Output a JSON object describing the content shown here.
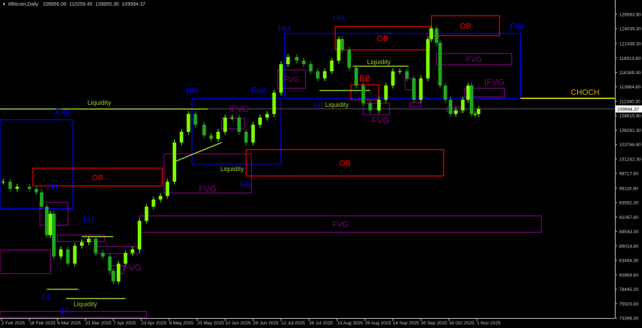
{
  "header": {
    "symbol": "#Bitcoin,Daily",
    "open": "109856.08",
    "high": "110259.45",
    "low": "109855.30",
    "close": "109994.37",
    "menu_icon": "triangle-down-icon"
  },
  "colors": {
    "background": "#000000",
    "bull": "#7CFC00",
    "bear": "#1fa81f",
    "structure": "#0000ff",
    "order_block": "#ff0000",
    "fvg": "#800080",
    "liquidity": "#9acd32",
    "choch": "#ffff00",
    "choch_text": "#d4b000",
    "price_line": "#5a5a5a",
    "axis": "#c0c0c0"
  },
  "chart_data": {
    "type": "candlestick",
    "title": "#Bitcoin,Daily",
    "ylim": [
      73396.3,
      126563.8
    ],
    "y_ticks": [
      "126563.80",
      "124039.30",
      "121438.30",
      "118913.80",
      "116389.30",
      "113864.80",
      "111340.30",
      "108815.80",
      "106291.30",
      "103766.80",
      "101242.30",
      "98717.80",
      "96116.80",
      "93592.30",
      "91067.80",
      "88543.30",
      "86018.80",
      "83494.30",
      "80969.80",
      "78445.30",
      "75920.80",
      "73396.30"
    ],
    "x_ticks": [
      {
        "date": "2025-02-02",
        "label": "2 Feb 2025"
      },
      {
        "date": "2025-02-18",
        "label": "18 Feb 2025"
      },
      {
        "date": "2025-03-06",
        "label": "6 Mar 2025"
      },
      {
        "date": "2025-03-22",
        "label": "22 Mar 2025"
      },
      {
        "date": "2025-04-07",
        "label": "7 Apr 2025"
      },
      {
        "date": "2025-04-23",
        "label": "23 Apr 2025"
      },
      {
        "date": "2025-05-09",
        "label": "9 May 2025"
      },
      {
        "date": "2025-05-25",
        "label": "25 May 2025"
      },
      {
        "date": "2025-06-10",
        "label": "10 Jun 2025"
      },
      {
        "date": "2025-06-26",
        "label": "26 Jun 2025"
      },
      {
        "date": "2025-07-12",
        "label": "12 Jul 2025"
      },
      {
        "date": "2025-07-28",
        "label": "28 Jul 2025"
      },
      {
        "date": "2025-08-13",
        "label": "13 Aug 2025"
      },
      {
        "date": "2025-08-29",
        "label": "29 Aug 2025"
      },
      {
        "date": "2025-09-14",
        "label": "14 Sep 2025"
      },
      {
        "date": "2025-09-30",
        "label": "30 Sep 2025"
      },
      {
        "date": "2025-10-16",
        "label": "16 Oct 2025"
      },
      {
        "date": "2025-11-01",
        "label": "1 Nov 2025"
      }
    ],
    "current_price": "109994.37",
    "dates": [
      "2025-02-03",
      "2025-02-07",
      "2025-02-11",
      "2025-02-18",
      "2025-02-22",
      "2025-02-25",
      "2025-02-28",
      "2025-03-02",
      "2025-03-04",
      "2025-03-08",
      "2025-03-12",
      "2025-03-16",
      "2025-03-20",
      "2025-03-24",
      "2025-03-28",
      "2025-04-01",
      "2025-04-05",
      "2025-04-07",
      "2025-04-10",
      "2025-04-14",
      "2025-04-18",
      "2025-04-22",
      "2025-04-26",
      "2025-04-30",
      "2025-05-04",
      "2025-05-08",
      "2025-05-12",
      "2025-05-16",
      "2025-05-20",
      "2025-05-24",
      "2025-05-29",
      "2025-06-02",
      "2025-06-06",
      "2025-06-10",
      "2025-06-14",
      "2025-06-18",
      "2025-06-22",
      "2025-06-26",
      "2025-06-30",
      "2025-07-04",
      "2025-07-08",
      "2025-07-12",
      "2025-07-16",
      "2025-07-21",
      "2025-07-25",
      "2025-07-29",
      "2025-08-02",
      "2025-08-06",
      "2025-08-10",
      "2025-08-14",
      "2025-08-16",
      "2025-08-20",
      "2025-08-24",
      "2025-08-28",
      "2025-09-01",
      "2025-09-06",
      "2025-09-10",
      "2025-09-14",
      "2025-09-18",
      "2025-09-22",
      "2025-09-26",
      "2025-09-30",
      "2025-10-04",
      "2025-10-06",
      "2025-10-09",
      "2025-10-11",
      "2025-10-14",
      "2025-10-17",
      "2025-10-20",
      "2025-10-24",
      "2025-10-27",
      "2025-10-29",
      "2025-10-31",
      "2025-11-02"
    ],
    "close": [
      97259,
      96012,
      96387,
      96012,
      95389,
      92895,
      87907,
      91648,
      84166,
      85413,
      82919,
      86036,
      86660,
      87283,
      84789,
      84166,
      81672,
      79801,
      82919,
      84789,
      85413,
      90401,
      92895,
      94142,
      94765,
      97259,
      104118,
      105988,
      109106,
      107235,
      105365,
      104741,
      105988,
      108482,
      108482,
      105988,
      104118,
      107235,
      108482,
      109106,
      112847,
      117835,
      119082,
      118458,
      117835,
      116588,
      115341,
      116588,
      118458,
      122199,
      120329,
      117211,
      114094,
      110976,
      109729,
      111600,
      114094,
      116588,
      116588,
      115341,
      111600,
      115341,
      122199,
      124070,
      121576,
      114094,
      111600,
      109106,
      109729,
      111600,
      114094,
      109106,
      109106,
      109994
    ]
  },
  "zones": [
    {
      "kind": "structure",
      "label": "",
      "from": "2025-02-01",
      "to": "2025-03-15",
      "top": 108108,
      "bottom": 92521
    },
    {
      "kind": "structure",
      "label": "",
      "from": "2025-05-22",
      "to": "2025-07-12",
      "top": 111849,
      "bottom": 100377
    },
    {
      "kind": "structure",
      "label": "",
      "from": "2025-07-14",
      "to": "2025-11-26",
      "top": 123197,
      "bottom": 111849
    },
    {
      "kind": "order_block",
      "label": "OB",
      "from": "2025-02-20",
      "to": "2025-05-05",
      "top": 99629,
      "bottom": 96511
    },
    {
      "kind": "order_block",
      "label": "OB",
      "from": "2025-06-22",
      "to": "2025-10-13",
      "top": 102871,
      "bottom": 98257
    },
    {
      "kind": "order_block",
      "label": "OB",
      "from": "2025-08-12",
      "to": "2025-10-05",
      "top": 124444,
      "bottom": 120329
    },
    {
      "kind": "order_block",
      "label": "OB",
      "from": "2025-10-06",
      "to": "2025-11-14",
      "top": 126315,
      "bottom": 122823
    },
    {
      "kind": "order_block",
      "label": "",
      "from": "2025-08-21",
      "to": "2025-09-06",
      "top": 114219,
      "bottom": 111600
    },
    {
      "kind": "fvg",
      "label": "",
      "from": "2025-02-24",
      "to": "2025-03-12",
      "top": 93643,
      "bottom": 89653
    },
    {
      "kind": "fvg",
      "label": "",
      "from": "2025-02-01",
      "to": "2025-03-02",
      "top": 85288,
      "bottom": 81173
    },
    {
      "kind": "fvg",
      "label": "",
      "from": "2025-03-06",
      "to": "2025-04-02",
      "top": 87907,
      "bottom": 86785
    },
    {
      "kind": "fvg",
      "label": "",
      "from": "2025-03-27",
      "to": "2025-04-22",
      "top": 85912,
      "bottom": 84665
    },
    {
      "kind": "fvg",
      "label": "",
      "from": "2025-04-05",
      "to": "2025-04-13",
      "top": 82545,
      "bottom": 81173
    },
    {
      "kind": "fvg",
      "label": "FVG",
      "from": "2025-04-22",
      "to": "2025-12-08",
      "top": 91274,
      "bottom": 88406
    },
    {
      "kind": "fvg",
      "label": "",
      "from": "2025-05-06",
      "to": "2025-06-25",
      "top": 102123,
      "bottom": 95264
    },
    {
      "kind": "fvg",
      "label": "",
      "from": "2025-06-08",
      "to": "2025-06-21",
      "top": 108358,
      "bottom": 106487
    },
    {
      "kind": "fvg",
      "label": "FVG",
      "from": "2025-07-10",
      "to": "2025-07-26",
      "top": 116837,
      "bottom": 113595
    },
    {
      "kind": "fvg",
      "label": "",
      "from": "2025-08-28",
      "to": "2025-09-12",
      "top": 110976,
      "bottom": 108981
    },
    {
      "kind": "fvg",
      "label": "",
      "from": "2025-09-21",
      "to": "2025-09-26",
      "top": 115341,
      "bottom": 113346
    },
    {
      "kind": "fvg",
      "label": "",
      "from": "2025-09-24",
      "to": "2025-09-30",
      "top": 111101,
      "bottom": 110353
    },
    {
      "kind": "fvg",
      "label": "FVG",
      "from": "2025-10-09",
      "to": "2025-11-21",
      "top": 119705,
      "bottom": 117710
    },
    {
      "kind": "fvg",
      "label": "",
      "from": "2025-10-25",
      "to": "2025-11-17",
      "top": 113595,
      "bottom": 112099
    },
    {
      "kind": "fvg",
      "label": "",
      "from": "2025-10-15",
      "to": "2025-10-24",
      "top": 110353,
      "bottom": 109480
    },
    {
      "kind": "fvg",
      "label": "",
      "from": "2025-02-01",
      "to": "2025-04-26",
      "top": 74564,
      "bottom": 73396
    }
  ],
  "lines": [
    {
      "kind": "liquidity",
      "from": "2025-02-01",
      "to": "2025-05-31",
      "price1": 109979,
      "price2": 109979
    },
    {
      "kind": "liquidity",
      "from": "2025-02-28",
      "to": "2025-03-18",
      "price1": 78430,
      "price2": 78430
    },
    {
      "kind": "liquidity",
      "from": "2025-03-11",
      "to": "2025-04-14",
      "price1": 76809,
      "price2": 76809
    },
    {
      "kind": "liquidity",
      "from": "2025-03-20",
      "to": "2025-04-07",
      "price1": 87658,
      "price2": 87658
    },
    {
      "kind": "liquidity",
      "from": "2025-05-12",
      "to": "2025-06-08",
      "price1": 100751,
      "price2": 104118
    },
    {
      "kind": "liquidity",
      "from": "2025-08-03",
      "to": "2025-09-01",
      "price1": 113221,
      "price2": 113221
    },
    {
      "kind": "liquidity",
      "from": "2025-08-22",
      "to": "2025-09-23",
      "price1": 117461,
      "price2": 117461
    },
    {
      "kind": "choch",
      "from": "2025-11-26",
      "to": "edge",
      "price1": 111849,
      "price2": 111849
    }
  ],
  "labels": [
    {
      "kind": "structure",
      "text": "Flat",
      "date": "2025-03-09",
      "price": 109480
    },
    {
      "kind": "structure",
      "text": "Flat",
      "date": "2025-06-29",
      "price": 113221
    },
    {
      "kind": "structure",
      "text": "Flat",
      "date": "2025-11-24",
      "price": 124444
    },
    {
      "kind": "structure",
      "text": "LH",
      "date": "2025-03-03",
      "price": 96387
    },
    {
      "kind": "structure",
      "text": "LH",
      "date": "2025-03-24",
      "price": 90650
    },
    {
      "kind": "structure",
      "text": "LL",
      "date": "2025-02-28",
      "price": 77183
    },
    {
      "kind": "structure",
      "text": "LL",
      "date": "2025-03-11",
      "price": 74689
    },
    {
      "kind": "structure",
      "text": "HH",
      "date": "2025-05-22",
      "price": 113221
    },
    {
      "kind": "structure",
      "text": "HL",
      "date": "2025-06-22",
      "price": 96761
    },
    {
      "kind": "structure",
      "text": "HH",
      "date": "2025-07-14",
      "price": 124070
    },
    {
      "kind": "structure",
      "text": "HH",
      "date": "2025-08-14",
      "price": 125940
    },
    {
      "kind": "structure",
      "text": "HL",
      "date": "2025-08-03",
      "price": 110602
    },
    {
      "kind": "liquidity",
      "text": "Liquidity",
      "date": "2025-03-30",
      "price": 111226
    },
    {
      "kind": "liquidity",
      "text": "Liquidity",
      "date": "2025-03-22",
      "price": 75936
    },
    {
      "kind": "liquidity",
      "text": "Liquidity",
      "date": "2025-06-14",
      "price": 99629
    },
    {
      "kind": "liquidity",
      "text": "Liquidity",
      "date": "2025-08-13",
      "price": 110852
    },
    {
      "kind": "liquidity",
      "text": "Liquidity",
      "date": "2025-09-06",
      "price": 118334
    },
    {
      "kind": "fvg",
      "text": "FVG",
      "date": "2025-04-18",
      "price": 82171
    },
    {
      "kind": "fvg",
      "text": "FVG",
      "date": "2025-05-31",
      "price": 96000
    },
    {
      "kind": "fvg",
      "text": "IFVG",
      "date": "2025-06-18",
      "price": 109979
    },
    {
      "kind": "fvg",
      "text": "FVG",
      "date": "2025-09-07",
      "price": 107984
    },
    {
      "kind": "fvg",
      "text": "IFVG",
      "date": "2025-11-11",
      "price": 114717
    },
    {
      "kind": "order_block",
      "text": "BB",
      "date": "2025-08-29",
      "price": 115341
    },
    {
      "kind": "choch_text",
      "text": "CHOCH",
      "date": "2026-01-02",
      "price": 112972
    }
  ]
}
